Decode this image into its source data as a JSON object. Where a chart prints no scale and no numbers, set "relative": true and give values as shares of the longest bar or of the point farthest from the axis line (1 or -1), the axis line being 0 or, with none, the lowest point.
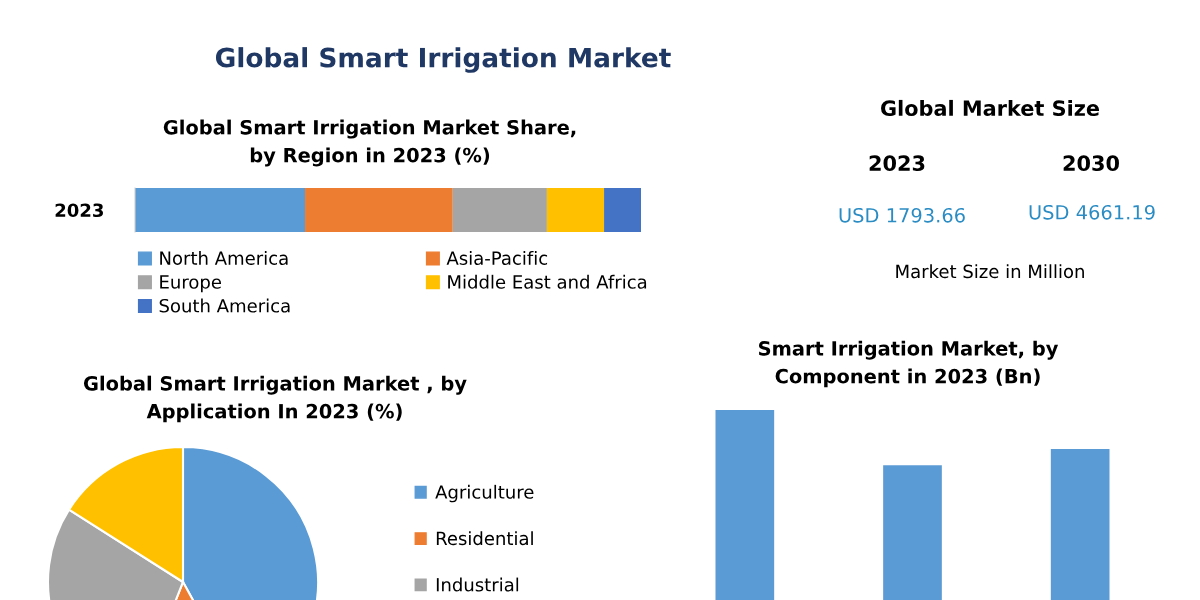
{
  "chart_data": [
    {
      "type": "bar",
      "title": "Global Smart Irrigation Market",
      "subtitle": "Global Smart Irrigation Market Share, by Region in 2023 (%)",
      "orientation": "horizontal",
      "stacked": true,
      "relative": true,
      "categories": [
        "2023"
      ],
      "legend": "bottom",
      "series": [
        {
          "name": "North America",
          "color": "#5b9bd5",
          "values": [
            0.336
          ]
        },
        {
          "name": "Asia-Pacific",
          "color": "#ed7d31",
          "values": [
            0.292
          ]
        },
        {
          "name": "Europe",
          "color": "#a5a5a5",
          "values": [
            0.186
          ]
        },
        {
          "name": "Middle East and Africa",
          "color": "#ffc000",
          "values": [
            0.113
          ]
        },
        {
          "name": "South America",
          "color": "#4472c4",
          "values": [
            0.073
          ]
        }
      ]
    },
    {
      "type": "other",
      "title": "Global Market Size",
      "annotations": [
        "2023",
        "2030",
        "USD 1793.66",
        "USD 4661.19",
        "Market Size in Million"
      ]
    },
    {
      "type": "pie",
      "title": "Global Smart Irrigation Market , by Application In 2023 (%)",
      "categories": [
        "Agriculture",
        "Residential",
        "Industrial",
        null
      ],
      "values": [
        42,
        14,
        28,
        16
      ],
      "colors": [
        "#5b9bd5",
        "#ed7d31",
        "#a5a5a5",
        "#ffc000"
      ],
      "legend": "right"
    },
    {
      "type": "bar",
      "title": "Smart Irrigation Market, by Component in 2023 (Bn)",
      "relative": true,
      "categories": [
        null,
        null,
        null
      ],
      "values": [
        1,
        0.76,
        0.83
      ],
      "color": "#5b9bd5"
    }
  ]
}
